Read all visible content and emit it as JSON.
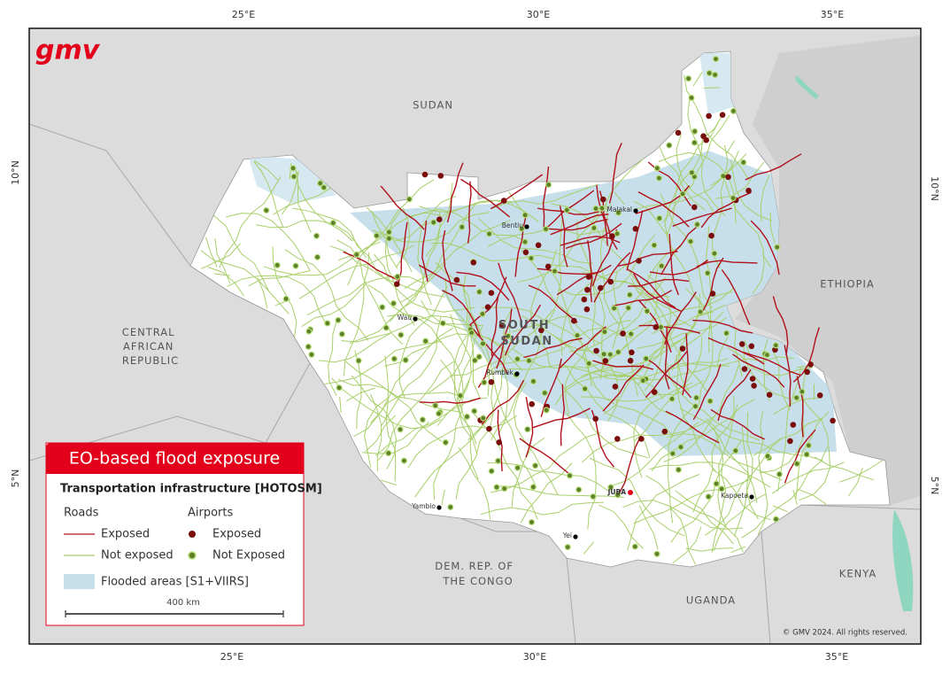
{
  "logo": "gmv",
  "graticule": {
    "top": [
      "25°E",
      "30°E",
      "35°E"
    ],
    "bottom": [
      "25°E",
      "30°E",
      "35°E"
    ],
    "left": [
      "10°N",
      "5°N"
    ],
    "right": [
      "10°N",
      "5°N"
    ]
  },
  "countries": {
    "sudan": "SUDAN",
    "ethiopia": "ETHIOPIA",
    "car": [
      "CENTRAL",
      "AFRICAN",
      "REPUBLIC"
    ],
    "south_sudan": [
      "SOUTH",
      "SUDAN"
    ],
    "drc": [
      "DEM. REP. OF",
      "THE CONGO"
    ],
    "uganda": "UGANDA",
    "kenya": "KENYA"
  },
  "cities": {
    "malakal": "Malakal",
    "bentiu": "Bentiu",
    "wau": "Wau",
    "rumbek": "Rumbek",
    "juba": "JUBA",
    "kapoeta": "Kapoeta",
    "yambio": "Yambio",
    "yei": "Yei"
  },
  "legend": {
    "title": "EO-based flood exposure",
    "subtitle": "Transportation infrastructure [HOTOSM]",
    "roads": {
      "heading": "Roads",
      "exposed": "Exposed",
      "not_exposed": "Not exposed"
    },
    "airports": {
      "heading": "Airports",
      "exposed": "Exposed",
      "not_exposed": "Not Exposed"
    },
    "flooded": "Flooded areas [S1+VIIRS]",
    "scale": "400 km"
  },
  "copyright": "© GMV 2024. All rights reserved."
}
